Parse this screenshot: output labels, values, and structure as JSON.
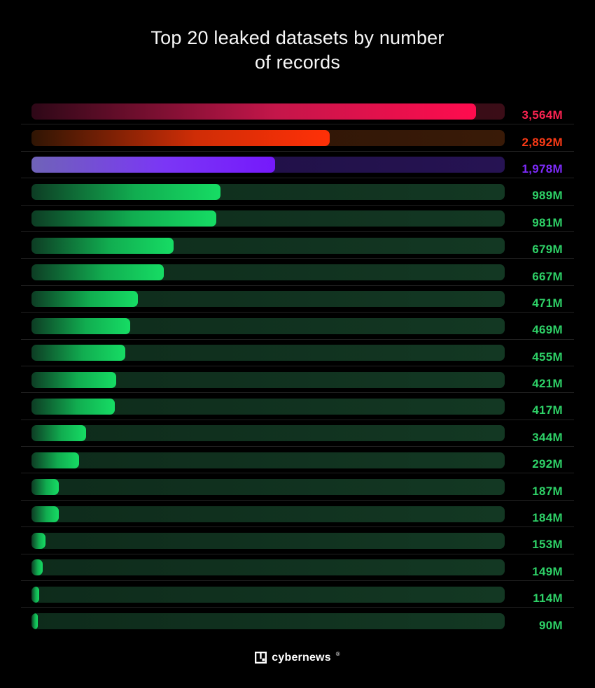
{
  "page": {
    "background": "#000000"
  },
  "header": {
    "title_line1": "Top 20 leaked datasets by number",
    "title_line2": "of records"
  },
  "chart_data": {
    "type": "bar",
    "orientation": "horizontal",
    "title": "Top 20 leaked datasets by number of records",
    "unit": "millions of records",
    "xlabel": "",
    "ylabel": "",
    "legend": "none",
    "grid": "off",
    "values": [
      3564,
      2892,
      1978,
      989,
      981,
      679,
      667,
      471,
      469,
      455,
      421,
      417,
      344,
      292,
      187,
      184,
      153,
      149,
      114,
      90
    ],
    "rows": [
      {
        "value": 3564,
        "value_label": "3,564M",
        "fill_pct": 94.0,
        "theme": "red"
      },
      {
        "value": 2892,
        "value_label": "2,892M",
        "fill_pct": 63.0,
        "theme": "orange"
      },
      {
        "value": 1978,
        "value_label": "1,978M",
        "fill_pct": 51.5,
        "theme": "violet"
      },
      {
        "value": 989,
        "value_label": "989M",
        "fill_pct": 40.0,
        "theme": "green"
      },
      {
        "value": 981,
        "value_label": "981M",
        "fill_pct": 39.0,
        "theme": "green"
      },
      {
        "value": 679,
        "value_label": "679M",
        "fill_pct": 30.0,
        "theme": "green"
      },
      {
        "value": 667,
        "value_label": "667M",
        "fill_pct": 28.0,
        "theme": "green"
      },
      {
        "value": 471,
        "value_label": "471M",
        "fill_pct": 22.5,
        "theme": "green"
      },
      {
        "value": 469,
        "value_label": "469M",
        "fill_pct": 20.8,
        "theme": "green"
      },
      {
        "value": 455,
        "value_label": "455M",
        "fill_pct": 19.8,
        "theme": "green"
      },
      {
        "value": 421,
        "value_label": "421M",
        "fill_pct": 17.9,
        "theme": "green"
      },
      {
        "value": 417,
        "value_label": "417M",
        "fill_pct": 17.6,
        "theme": "green"
      },
      {
        "value": 344,
        "value_label": "344M",
        "fill_pct": 11.5,
        "theme": "green"
      },
      {
        "value": 292,
        "value_label": "292M",
        "fill_pct": 10.0,
        "theme": "green"
      },
      {
        "value": 187,
        "value_label": "187M",
        "fill_pct": 5.8,
        "theme": "green"
      },
      {
        "value": 184,
        "value_label": "184M",
        "fill_pct": 5.8,
        "theme": "green"
      },
      {
        "value": 153,
        "value_label": "153M",
        "fill_pct": 3.0,
        "theme": "green"
      },
      {
        "value": 149,
        "value_label": "149M",
        "fill_pct": 2.3,
        "theme": "green"
      },
      {
        "value": 114,
        "value_label": "114M",
        "fill_pct": 1.6,
        "theme": "green"
      },
      {
        "value": 90,
        "value_label": "90M",
        "fill_pct": 1.3,
        "theme": "green"
      }
    ],
    "themes": {
      "red": {
        "fill_from": "#2e0817",
        "fill_mid": "#c4164a",
        "fill_to": "#ff0c4e",
        "track_from": "#2a0912",
        "track_to": "#3b0d17",
        "label": "#fb2351"
      },
      "orange": {
        "fill_from": "#2f1504",
        "fill_mid": "#cf2d06",
        "fill_to": "#ff3007",
        "track_from": "#271206",
        "track_to": "#391a07",
        "label": "#fb3a16"
      },
      "violet": {
        "fill_from": "#6f63b8",
        "fill_mid": "#7b36f6",
        "fill_to": "#7519fb",
        "track_from": "#1c0f3e",
        "track_to": "#261353",
        "label": "#7e2bfc"
      },
      "green": {
        "fill_from": "#0d3d24",
        "fill_mid": "#11ad50",
        "fill_to": "#16dc64",
        "track_from": "#0e2b1b",
        "track_to": "#133823",
        "label": "#2ed167"
      }
    }
  },
  "footer": {
    "brand": "cybernews",
    "registered": "®",
    "logo_icon": "cybernews-logo"
  }
}
